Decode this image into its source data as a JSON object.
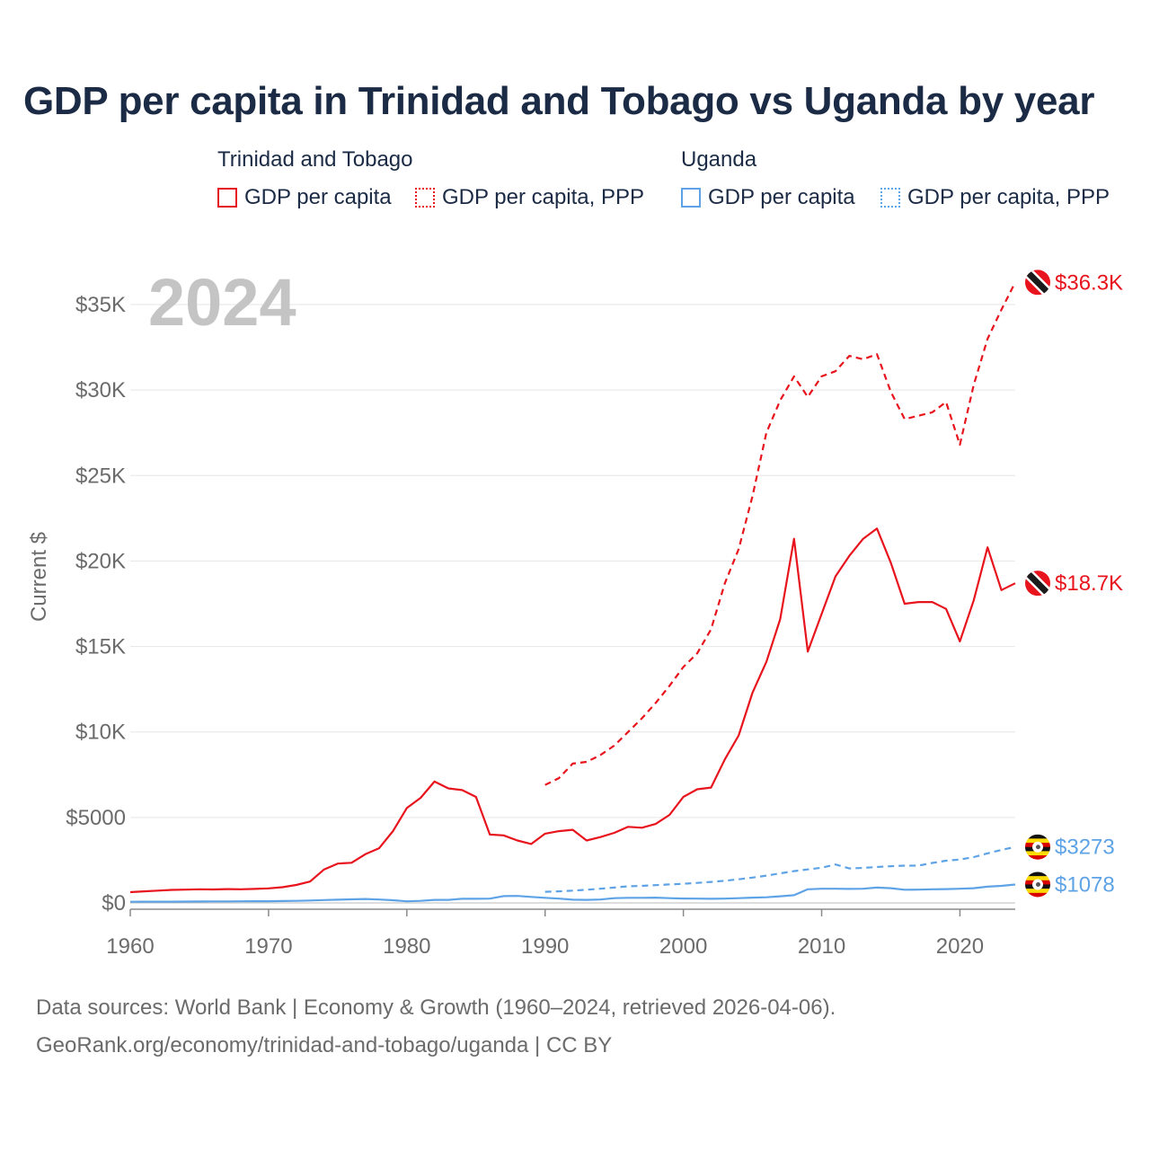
{
  "title": "GDP per capita in Trinidad and Tobago vs Uganda by year",
  "legend": {
    "groups": [
      {
        "country": "Trinidad and Tobago",
        "color": "#e8141d",
        "items": [
          {
            "label": "GDP per capita",
            "style": "solid"
          },
          {
            "label": "GDP per capita, PPP",
            "style": "dotted"
          }
        ]
      },
      {
        "country": "Uganda",
        "color": "#5ea3e6",
        "items": [
          {
            "label": "GDP per capita",
            "style": "solid"
          },
          {
            "label": "GDP per capita, PPP",
            "style": "dotted"
          }
        ]
      }
    ]
  },
  "chart_data": {
    "type": "line",
    "title": "GDP per capita in Trinidad and Tobago vs Uganda by year",
    "year_label": "2024",
    "xlabel": "",
    "ylabel": "Current $",
    "xlim": [
      1960,
      2024
    ],
    "ylim": [
      0,
      35000
    ],
    "x_ticks": [
      1960,
      1970,
      1980,
      1990,
      2000,
      2010,
      2020
    ],
    "x_tick_labels": [
      "1960",
      "1970",
      "1980",
      "1990",
      "2000",
      "2010",
      "2020"
    ],
    "y_ticks": [
      0,
      5000,
      10000,
      15000,
      20000,
      25000,
      30000,
      35000
    ],
    "y_tick_labels": [
      "$0",
      "$5000",
      "$10K",
      "$15K",
      "$20K",
      "$25K",
      "$30K",
      "$35K"
    ],
    "grid": true,
    "series": [
      {
        "name": "Trinidad and Tobago GDP per capita",
        "country": "Trinidad and Tobago",
        "color": "#e8141d",
        "dash": "solid",
        "end_label": "$18.7K",
        "flag": "trinidad-and-tobago",
        "x": [
          1960,
          1961,
          1962,
          1963,
          1964,
          1965,
          1966,
          1967,
          1968,
          1969,
          1970,
          1971,
          1972,
          1973,
          1974,
          1975,
          1976,
          1977,
          1978,
          1979,
          1980,
          1981,
          1982,
          1983,
          1984,
          1985,
          1986,
          1987,
          1988,
          1989,
          1990,
          1991,
          1992,
          1993,
          1994,
          1995,
          1996,
          1997,
          1998,
          1999,
          2000,
          2001,
          2002,
          2003,
          2004,
          2005,
          2006,
          2007,
          2008,
          2009,
          2010,
          2011,
          2012,
          2013,
          2014,
          2015,
          2016,
          2017,
          2018,
          2019,
          2020,
          2021,
          2022,
          2023,
          2024
        ],
        "values": [
          630,
          680,
          720,
          760,
          780,
          800,
          790,
          810,
          800,
          820,
          850,
          920,
          1050,
          1250,
          1950,
          2300,
          2350,
          2850,
          3200,
          4200,
          5550,
          6150,
          7100,
          6700,
          6600,
          6200,
          4000,
          3950,
          3650,
          3450,
          4050,
          4200,
          4280,
          3650,
          3850,
          4100,
          4450,
          4400,
          4620,
          5150,
          6200,
          6650,
          6750,
          8400,
          9800,
          12300,
          14100,
          16600,
          21300,
          14700,
          16900,
          19100,
          20300,
          21300,
          21900,
          19900,
          17500,
          17600,
          17600,
          17200,
          15300,
          17700,
          20800,
          18300,
          18700
        ]
      },
      {
        "name": "Trinidad and Tobago GDP per capita, PPP",
        "country": "Trinidad and Tobago",
        "color": "#e8141d",
        "dash": "dashed",
        "end_label": "$36.3K",
        "flag": "trinidad-and-tobago",
        "x": [
          1990,
          1991,
          1992,
          1993,
          1994,
          1995,
          1996,
          1997,
          1998,
          1999,
          2000,
          2001,
          2002,
          2003,
          2004,
          2005,
          2006,
          2007,
          2008,
          2009,
          2010,
          2011,
          2012,
          2013,
          2014,
          2015,
          2016,
          2017,
          2018,
          2019,
          2020,
          2021,
          2022,
          2023,
          2024
        ],
        "values": [
          6900,
          7300,
          8150,
          8250,
          8650,
          9200,
          10000,
          10800,
          11700,
          12700,
          13800,
          14600,
          16000,
          18700,
          20700,
          23800,
          27500,
          29400,
          30800,
          29600,
          30800,
          31100,
          32000,
          31800,
          32100,
          29900,
          28300,
          28500,
          28700,
          29300,
          26800,
          30300,
          33000,
          34700,
          36300
        ]
      },
      {
        "name": "Uganda GDP per capita",
        "country": "Uganda",
        "color": "#5ea3e6",
        "dash": "solid",
        "end_label": "$1078",
        "flag": "uganda",
        "x": [
          1960,
          1961,
          1962,
          1963,
          1964,
          1965,
          1966,
          1967,
          1968,
          1969,
          1970,
          1971,
          1972,
          1973,
          1974,
          1975,
          1976,
          1977,
          1978,
          1979,
          1980,
          1981,
          1982,
          1983,
          1984,
          1985,
          1986,
          1987,
          1988,
          1989,
          1990,
          1991,
          1992,
          1993,
          1994,
          1995,
          1996,
          1997,
          1998,
          1999,
          2000,
          2001,
          2002,
          2003,
          2004,
          2005,
          2006,
          2007,
          2008,
          2009,
          2010,
          2011,
          2012,
          2013,
          2014,
          2015,
          2016,
          2017,
          2018,
          2019,
          2020,
          2021,
          2022,
          2023,
          2024
        ],
        "values": [
          70,
          72,
          74,
          76,
          80,
          84,
          88,
          90,
          94,
          98,
          100,
          110,
          120,
          140,
          170,
          190,
          210,
          230,
          200,
          160,
          95,
          120,
          180,
          180,
          240,
          240,
          250,
          400,
          410,
          350,
          300,
          250,
          190,
          180,
          200,
          280,
          300,
          300,
          310,
          280,
          260,
          250,
          240,
          250,
          280,
          310,
          330,
          390,
          450,
          800,
          830,
          830,
          820,
          830,
          900,
          860,
          770,
          780,
          800,
          810,
          830,
          860,
          950,
          1000,
          1078
        ]
      },
      {
        "name": "Uganda GDP per capita, PPP",
        "country": "Uganda",
        "color": "#5ea3e6",
        "dash": "dashed",
        "end_label": "$3273",
        "flag": "uganda",
        "x": [
          1990,
          1991,
          1992,
          1993,
          1994,
          1995,
          1996,
          1997,
          1998,
          1999,
          2000,
          2001,
          2002,
          2003,
          2004,
          2005,
          2006,
          2007,
          2008,
          2009,
          2010,
          2011,
          2012,
          2013,
          2014,
          2015,
          2016,
          2017,
          2018,
          2019,
          2020,
          2021,
          2022,
          2023,
          2024
        ],
        "values": [
          650,
          680,
          720,
          770,
          830,
          900,
          970,
          1000,
          1040,
          1080,
          1120,
          1170,
          1230,
          1300,
          1380,
          1480,
          1600,
          1730,
          1860,
          1960,
          2060,
          2250,
          2020,
          2050,
          2100,
          2150,
          2180,
          2180,
          2340,
          2470,
          2540,
          2680,
          2900,
          3100,
          3273
        ]
      }
    ]
  },
  "footer": {
    "line1": "Data sources: World Bank | Economy & Growth (1960–2024, retrieved 2026-04-06).",
    "line2": "GeoRank.org/economy/trinidad-and-tobago/uganda | CC BY"
  }
}
